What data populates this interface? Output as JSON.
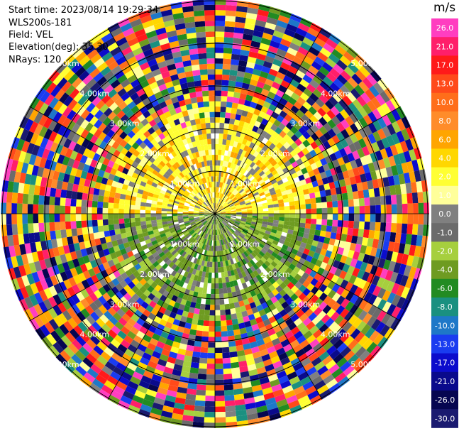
{
  "info": {
    "start_time": "Start time: 2023/08/14 19:29:34",
    "instrument": "WLS200s-181",
    "field": "Field: VEL",
    "elevation": "Elevation(deg): 35.30",
    "nrays": "NRays: 120"
  },
  "chart_data": {
    "type": "heatmap",
    "projection": "polar-ppi",
    "field": "VEL",
    "units": "m/s",
    "nrays": 120,
    "elevation_deg": 35.3,
    "range_rings_km": [
      1.0,
      2.0,
      3.0,
      4.0,
      5.0
    ],
    "range_ring_labels": [
      "1.00km",
      "2.00km",
      "3.00km",
      "4.00km",
      "5.00km"
    ],
    "max_range_km": 5.0,
    "azimuth_spokes_deg": [
      0,
      30,
      60,
      90,
      120,
      150,
      180,
      210,
      240,
      270,
      300,
      330
    ],
    "colorbar": {
      "title": "m/s",
      "bins": [
        {
          "label": "26.0",
          "color": "#ff3ec0"
        },
        {
          "label": "21.0",
          "color": "#ff1f6a"
        },
        {
          "label": "17.0",
          "color": "#ff1a1a"
        },
        {
          "label": "13.0",
          "color": "#ff4a1a"
        },
        {
          "label": "10.0",
          "color": "#ff6e1a"
        },
        {
          "label": "8.0",
          "color": "#ff8c2a"
        },
        {
          "label": "6.0",
          "color": "#ffa500"
        },
        {
          "label": "4.0",
          "color": "#ffd700"
        },
        {
          "label": "2.0",
          "color": "#ffff33"
        },
        {
          "label": "1.0",
          "color": "#ffff9a"
        },
        {
          "label": "0.0",
          "color": "#808080"
        },
        {
          "label": "-1.0",
          "color": "#6b6b6b"
        },
        {
          "label": "-2.0",
          "color": "#a6cf3e"
        },
        {
          "label": "-4.0",
          "color": "#6e9b21"
        },
        {
          "label": "-6.0",
          "color": "#228b22"
        },
        {
          "label": "-8.0",
          "color": "#1a9080"
        },
        {
          "label": "-10.0",
          "color": "#1e78c8"
        },
        {
          "label": "-13.0",
          "color": "#1a3cf0"
        },
        {
          "label": "-17.0",
          "color": "#0c0ccc"
        },
        {
          "label": "-21.0",
          "color": "#0a0a8c"
        },
        {
          "label": "-26.0",
          "color": "#060650"
        },
        {
          "label": "-30.0",
          "color": "#1a1a70"
        }
      ]
    }
  }
}
